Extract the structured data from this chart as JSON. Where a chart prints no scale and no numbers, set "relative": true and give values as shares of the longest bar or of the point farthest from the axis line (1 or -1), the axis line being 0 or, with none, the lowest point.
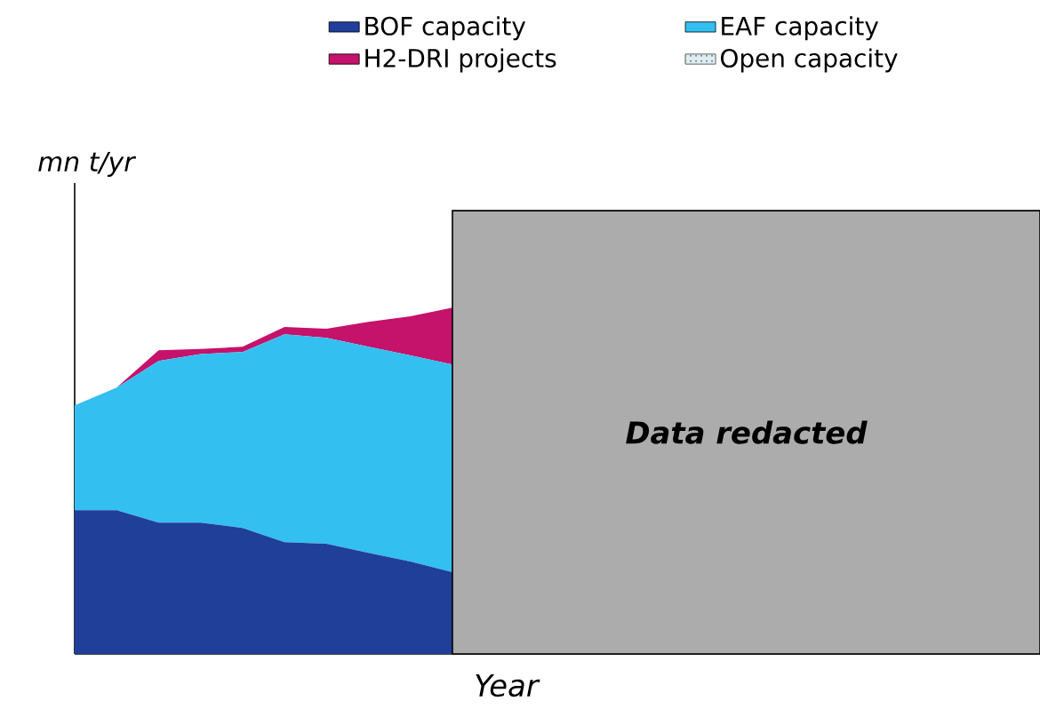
{
  "chart_data": {
    "type": "area",
    "stacked": true,
    "relative": true,
    "legend": "top",
    "xlabel": "Year",
    "ylabel": "mn t/yr",
    "categories": [
      null,
      null,
      null,
      null,
      null,
      null,
      null,
      null,
      null,
      null,
      null,
      null,
      null,
      null,
      null,
      null,
      null,
      null,
      null,
      null,
      null,
      null,
      null,
      null
    ],
    "series": [
      {
        "name": "BOF capacity",
        "color": "#1f3f99",
        "values": [
          0.415,
          0.415,
          0.379,
          0.379,
          0.364,
          0.323,
          0.318,
          0.292,
          0.267,
          0.236,
          null,
          null,
          null,
          null,
          null,
          null,
          null,
          null,
          null,
          null,
          null,
          null,
          null,
          null
        ]
      },
      {
        "name": "EAF capacity",
        "color": "#33bff0",
        "values": [
          0.303,
          0.354,
          0.467,
          0.487,
          0.508,
          0.6,
          0.595,
          0.595,
          0.595,
          0.6,
          null,
          null,
          null,
          null,
          null,
          null,
          null,
          null,
          null,
          null,
          null,
          null,
          null,
          null
        ]
      },
      {
        "name": "H2-DRI projects",
        "color": "#c5126b",
        "values": [
          0,
          0,
          0.031,
          0.015,
          0.015,
          0.021,
          0.026,
          0.072,
          0.113,
          0.164,
          null,
          null,
          null,
          null,
          null,
          null,
          null,
          null,
          null,
          null,
          null,
          null,
          null,
          null
        ]
      },
      {
        "name": "Open capacity",
        "color": "#dceef4",
        "values": [
          null,
          null,
          null,
          null,
          null,
          null,
          null,
          null,
          null,
          null,
          null,
          null,
          null,
          null,
          null,
          null,
          null,
          null,
          null,
          null,
          null,
          null,
          null,
          null
        ]
      }
    ],
    "annotations": [
      "Data redacted"
    ]
  }
}
